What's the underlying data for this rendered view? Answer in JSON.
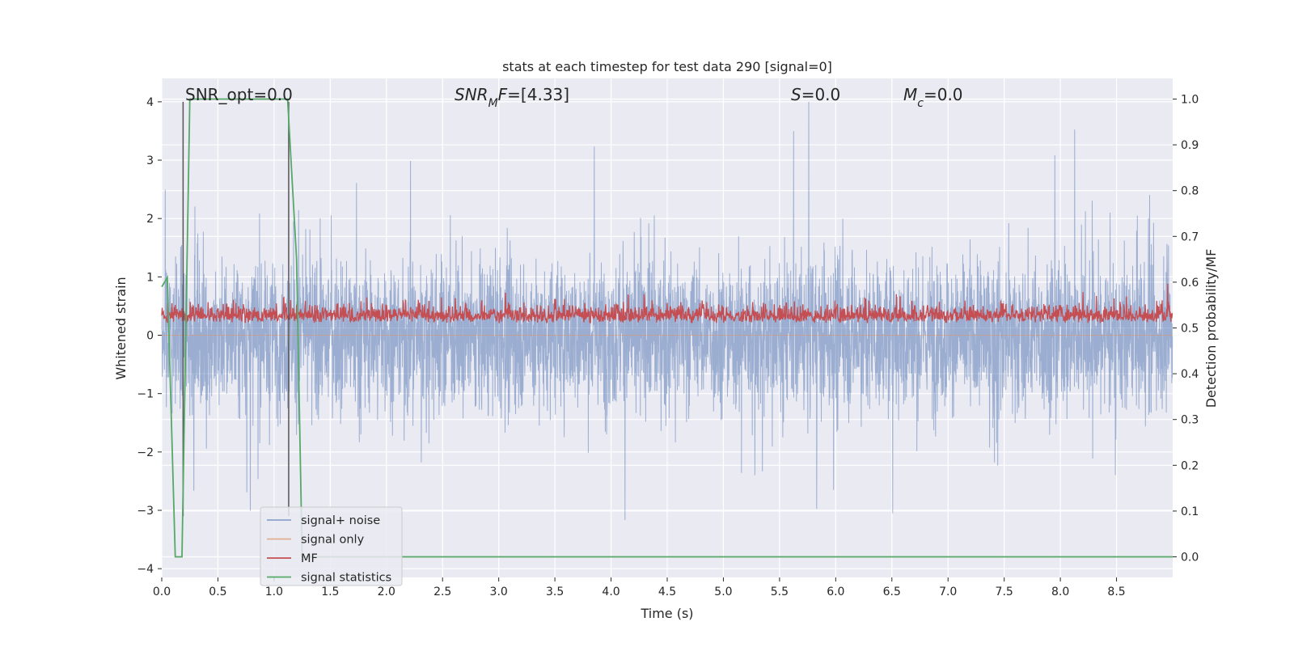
{
  "chart_data": {
    "type": "line",
    "title": "stats at each timestep for test data 290 [signal=0]",
    "xlabel": "Time (s)",
    "ylabel_left": "Whitened strain",
    "ylabel_right": "Detection probability/MF",
    "xlim": [
      0.0,
      9.0
    ],
    "ylim_left": [
      -4.15,
      4.4
    ],
    "ylim_right": [
      -0.045,
      1.045
    ],
    "x_ticks": [
      "0.0",
      "0.5",
      "1.0",
      "1.5",
      "2.0",
      "2.5",
      "3.0",
      "3.5",
      "4.0",
      "4.5",
      "5.0",
      "5.5",
      "6.0",
      "6.5",
      "7.0",
      "7.5",
      "8.0",
      "8.5"
    ],
    "y_ticks_left": [
      "4",
      "3",
      "2",
      "1",
      "0",
      "−1",
      "−2",
      "−3",
      "−4"
    ],
    "y_ticks_right": [
      "1.0",
      "0.9",
      "0.8",
      "0.7",
      "0.6",
      "0.5",
      "0.4",
      "0.3",
      "0.2",
      "0.1",
      "0.0"
    ],
    "grid": true,
    "annotations": [
      {
        "parts": [
          {
            "t": "SNR_opt=0.0",
            "i": false
          }
        ]
      },
      {
        "parts": [
          {
            "t": "SNR",
            "i": true
          },
          {
            "t": "M",
            "i": true,
            "sub": true
          },
          {
            "t": "F",
            "i": true
          },
          {
            "t": "=[4.33]",
            "i": false
          }
        ]
      },
      {
        "parts": [
          {
            "t": "S",
            "i": true
          },
          {
            "t": "=0.0",
            "i": false
          }
        ]
      },
      {
        "parts": [
          {
            "t": "M",
            "i": true
          },
          {
            "t": "c",
            "i": true,
            "sub": true
          },
          {
            "t": "=0.0",
            "i": false
          }
        ]
      }
    ],
    "series": [
      {
        "name": "signal+ noise",
        "color": "#4c72b0",
        "axis": "left",
        "description_values": "noise approx -3.8 to 4.0, mostly within +/-2.5"
      },
      {
        "name": "signal only",
        "color": "#dd8452",
        "axis": "left",
        "values": "zero"
      },
      {
        "name": "MF",
        "color": "#c44e52",
        "axis": "right",
        "range": [
          0.49,
          0.6
        ]
      },
      {
        "name": "signal statistics",
        "color": "#55a868",
        "axis": "right",
        "x": [
          0.0,
          0.05,
          0.12,
          0.18,
          0.25,
          1.12,
          1.2,
          1.25,
          1.5,
          9.0
        ],
        "y": [
          0.59,
          0.61,
          0.0,
          0.0,
          1.0,
          1.0,
          0.65,
          0.0,
          0.0,
          0.0
        ]
      }
    ],
    "vlines_x": [
      0.19,
      1.13
    ],
    "legend_position": "lower-left"
  },
  "colors": {
    "background": "#eaeaf2",
    "grid": "#ffffff",
    "vline": "#555555"
  }
}
